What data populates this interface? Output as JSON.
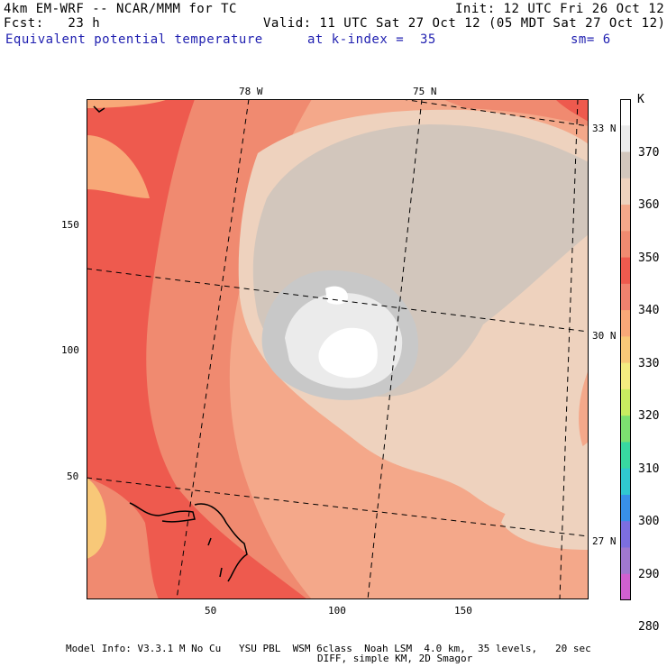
{
  "header": {
    "model": "4km EM-WRF -- NCAR/MMM for TC",
    "init": "Init: 12 UTC Fri 26 Oct 12",
    "fcst": "Fcst:   23 h",
    "valid": "Valid: 11 UTC Sat 27 Oct 12 (05 MDT Sat 27 Oct 12)",
    "field": "Equivalent potential temperature",
    "level": "at k-index =  35",
    "smooth": "sm= 6"
  },
  "map": {
    "lon_labels": [
      "78 W",
      "75 N"
    ],
    "lat_labels": [
      "33 N",
      "30 N",
      "27 N"
    ],
    "x_ticks": [
      "50",
      "100",
      "150"
    ],
    "y_ticks": [
      "150",
      "100",
      "50"
    ],
    "grid_range": {
      "x": [
        0,
        199
      ],
      "y": [
        0,
        199
      ]
    }
  },
  "colorbar": {
    "unit": "K",
    "levels": [
      "370",
      "360",
      "350",
      "340",
      "330",
      "320",
      "310",
      "300",
      "290",
      "280"
    ],
    "colors": [
      "#ffffff",
      "#ebebeb",
      "#d2c6bc",
      "#eed2be",
      "#f4a88a",
      "#f08a70",
      "#ee5a4e",
      "#f0826e",
      "#f8a878",
      "#f8c878",
      "#f4ec80",
      "#c8ec60",
      "#7ce070",
      "#38d8a0",
      "#30c8d0",
      "#3890e8",
      "#7c6ee0",
      "#a078d0",
      "#d060d0"
    ]
  },
  "footer": {
    "line1": "Model Info: V3.3.1 M No Cu   YSU PBL  WSM 6class  Noah LSM  4.0 km,  35 levels,   20 sec",
    "line2": "DIFF, simple KM, 2D Smagor"
  }
}
